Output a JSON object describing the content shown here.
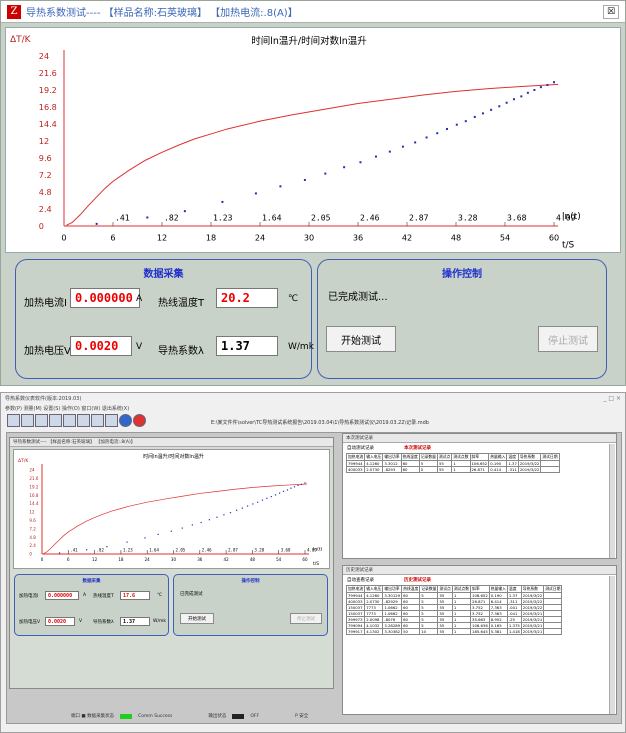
{
  "top": {
    "window_title": "导热系数测试---- 【样品名称:石英玻璃】 【加热电流:.8(A)】",
    "close": "☒",
    "chart": {
      "title": "时间ln温升/时间对数ln温升",
      "y_axis_label": "ΔT/K",
      "x_axis_label": "t/S",
      "ln_axis_label": "ln(t)"
    },
    "acq": {
      "header": "数据采集",
      "current_label": "加热电流I",
      "current_value": "0.000000",
      "current_unit": "A",
      "temp_label": "热线温度T",
      "temp_value": "20.2",
      "temp_unit": "℃",
      "voltage_label": "加热电压V",
      "voltage_value": "0.0020",
      "voltage_unit": "V",
      "k_label": "导热系数λ",
      "k_value": "1.37",
      "k_unit": "W/mk"
    },
    "ctrl": {
      "header": "操作控制",
      "status": "已完成测试...",
      "start": "开始测试",
      "stop": "停止测试"
    }
  },
  "bottom": {
    "app_title": "导热系数仪表软件(版本:2019.03)",
    "window_controls": "_ □ ×",
    "menu": "参数(P)  测量(M)  设置(S)  操作(O)  窗口(W)  退出系统(X)",
    "path": "E:\\某文件件\\solver\\TC导热测试系统报告\\2019.03.04\\1\\导热系数测试仪\\2019.03.22\\记录.mdb",
    "sub_title": "导热系数测试---- 【样品名称:石英玻璃】 【加热电流:.8(A)】",
    "mini": {
      "current_value": "0.000000",
      "temp_value": "17.6",
      "voltage_value": "0.0020",
      "k_value": "1.37",
      "status": "已完成测试",
      "start": "开始测试",
      "stop": "停止测试"
    },
    "rec1": {
      "title": "本次测试记录",
      "check": "自动测试记录",
      "head": "本次测试记录"
    },
    "rec2": {
      "title": "历史测试记录",
      "check": "自动查看记录",
      "head": "历史测试记录"
    },
    "status": {
      "left": "端口 ■ 数据采集状态",
      "comm": "Comm Success",
      "out": "输出状态",
      "off": "OFF",
      "ending": "P 安全"
    }
  },
  "chart_data": {
    "type": "scatter",
    "title": "时间ln温升/时间对数ln温升",
    "ylabel": "ΔT/K",
    "xlabel": "t/S",
    "ylim": [
      0,
      24
    ],
    "xlim": [
      0,
      60
    ],
    "yticks": [
      "0",
      "2.4",
      "4.8",
      "7.2",
      "9.6",
      "12",
      "14.4",
      "16.8",
      "19.2",
      "21.6",
      "24"
    ],
    "xticks": [
      "0",
      "6",
      "12",
      "18",
      "24",
      "30",
      "36",
      "42",
      "48",
      "54",
      "60"
    ],
    "ln_ticks": [
      ".41",
      ".82",
      "1.23",
      "1.64",
      "2.05",
      "2.46",
      "2.87",
      "3.28",
      "3.68",
      "4.09"
    ],
    "series": [
      {
        "color": "#e03030",
        "style": "line",
        "x": [
          0.3,
          1,
          2,
          3,
          4,
          5,
          6,
          7,
          8,
          9,
          10,
          12,
          14,
          16,
          18,
          20,
          24,
          28,
          32,
          36,
          40,
          44,
          48,
          52,
          56,
          60.5
        ],
        "y": [
          0.1,
          0.5,
          1.6,
          2.9,
          4.1,
          5.3,
          6.3,
          7.1,
          7.9,
          8.6,
          9.3,
          10.4,
          11.4,
          12.3,
          13.0,
          13.7,
          14.8,
          15.7,
          16.5,
          17.3,
          17.9,
          18.5,
          19.0,
          19.4,
          19.7,
          20.0
        ]
      },
      {
        "color": "#2030b0",
        "style": "dots",
        "x": [
          4.0,
          10.2,
          14.8,
          19.4,
          23.5,
          26.5,
          29.5,
          32.0,
          34.3,
          36.3,
          38.2,
          39.9,
          41.5,
          43.0,
          44.4,
          45.7,
          46.9,
          48.1,
          49.2,
          50.3,
          51.3,
          52.3,
          53.3,
          54.2,
          55.1,
          56.0,
          56.8,
          57.6,
          58.4,
          59.2,
          60.0
        ],
        "y": [
          0.3,
          1.2,
          2.1,
          3.4,
          4.6,
          5.6,
          6.5,
          7.4,
          8.3,
          9.0,
          9.8,
          10.5,
          11.2,
          11.8,
          12.5,
          13.1,
          13.7,
          14.3,
          14.8,
          15.4,
          15.9,
          16.4,
          16.9,
          17.4,
          17.9,
          18.3,
          18.8,
          19.2,
          19.6,
          19.9,
          20.3
        ]
      }
    ]
  }
}
